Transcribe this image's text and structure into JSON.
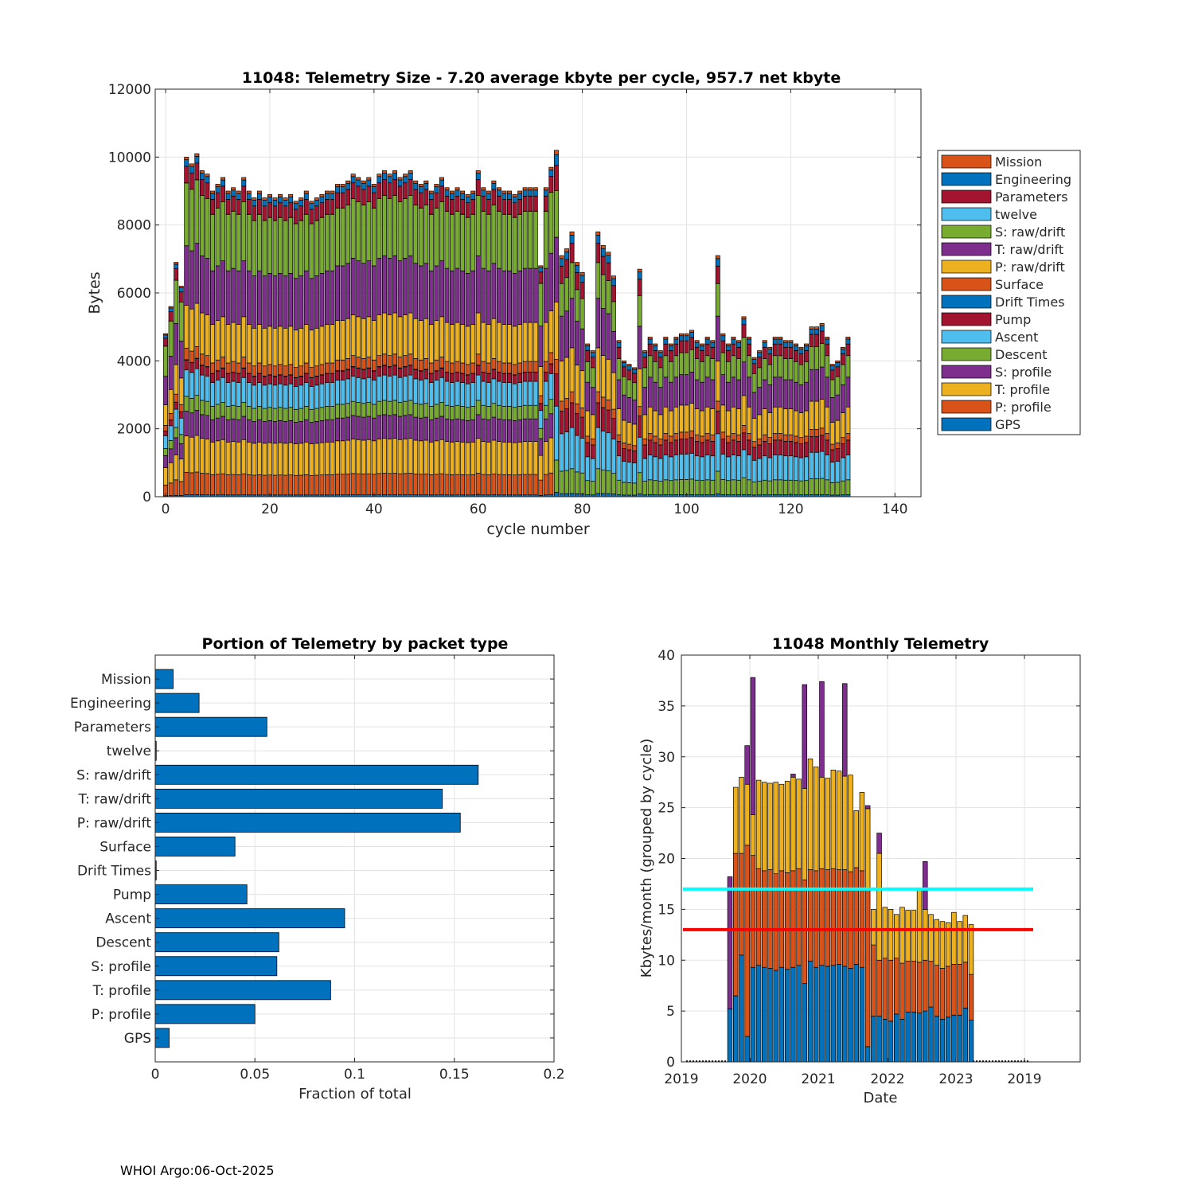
{
  "footer": "WHOI Argo:06-Oct-2025",
  "chart_data": [
    {
      "type": "bar",
      "stacked": true,
      "title": "11048: Telemetry Size - 7.20 average kbyte per cycle,  957.7 net kbyte",
      "xlabel": "cycle number",
      "ylabel": "Bytes",
      "xlim": [
        -2,
        145
      ],
      "ylim": [
        0,
        12000
      ],
      "xticks": [
        "0",
        "20",
        "40",
        "60",
        "80",
        "100",
        "120",
        "140"
      ],
      "yticks": [
        "0",
        "2000",
        "4000",
        "6000",
        "8000",
        "10000",
        "12000"
      ],
      "legend": [
        "Mission",
        "Engineering",
        "Parameters",
        "twelve",
        "S: raw/drift",
        "T: raw/drift",
        "P: raw/drift",
        "Surface",
        "Drift Times",
        "Pump",
        "Ascent",
        "Descent",
        "S: profile",
        "T: profile",
        "P: profile",
        "GPS"
      ],
      "legend_position": "outside-right",
      "legend_colors": [
        "#D95319",
        "#0072BD",
        "#A2142F",
        "#4DBEEE",
        "#77AC30",
        "#7E2F8E",
        "#EDB120",
        "#D95319",
        "#0072BD",
        "#A2142F",
        "#4DBEEE",
        "#77AC30",
        "#7E2F8E",
        "#EDB120",
        "#D95319",
        "#0072BD"
      ],
      "series_bottom_to_top": [
        "GPS",
        "P: profile",
        "T: profile",
        "S: profile",
        "Descent",
        "Ascent",
        "Pump",
        "Drift Times",
        "Surface",
        "P: raw/drift",
        "T: raw/drift",
        "S: raw/drift",
        "twelve",
        "Parameters",
        "Engineering",
        "Mission"
      ],
      "typical_cycle_early": {
        "GPS": 60,
        "P: profile": 680,
        "T: profile": 1100,
        "S: profile": 750,
        "Descent": 450,
        "Ascent": 800,
        "Pump": 300,
        "Drift Times": 10,
        "Surface": 350,
        "P: raw/drift": 1300,
        "T: raw/drift": 1800,
        "S: raw/drift": 1900,
        "twelve": 5,
        "Parameters": 500,
        "Engineering": 200,
        "Mission": 80
      },
      "typical_cycle_late": {
        "GPS": 60,
        "Descent": 450,
        "Ascent": 750,
        "Pump": 450,
        "Surface": 200,
        "P: raw/drift": 800,
        "T: raw/drift": 900,
        "S: raw/drift": 650,
        "Parameters": 350,
        "Engineering": 150,
        "Mission": 60
      },
      "totals": [
        {
          "x": 0,
          "y": 4800
        },
        {
          "x": 1,
          "y": 5600
        },
        {
          "x": 2,
          "y": 6900
        },
        {
          "x": 3,
          "y": 6200
        },
        {
          "x": 4,
          "y": 10000
        },
        {
          "x": 5,
          "y": 9800
        },
        {
          "x": 6,
          "y": 10100
        },
        {
          "x": 7,
          "y": 9600
        },
        {
          "x": 8,
          "y": 9500
        },
        {
          "x": 9,
          "y": 9000
        },
        {
          "x": 10,
          "y": 9200
        },
        {
          "x": 11,
          "y": 9400
        },
        {
          "x": 12,
          "y": 9000
        },
        {
          "x": 13,
          "y": 9100
        },
        {
          "x": 14,
          "y": 9000
        },
        {
          "x": 15,
          "y": 9400
        },
        {
          "x": 16,
          "y": 9000
        },
        {
          "x": 17,
          "y": 8800
        },
        {
          "x": 18,
          "y": 9000
        },
        {
          "x": 19,
          "y": 8800
        },
        {
          "x": 20,
          "y": 8900
        },
        {
          "x": 21,
          "y": 8800
        },
        {
          "x": 22,
          "y": 8900
        },
        {
          "x": 23,
          "y": 8800
        },
        {
          "x": 24,
          "y": 8900
        },
        {
          "x": 25,
          "y": 8700
        },
        {
          "x": 26,
          "y": 8800
        },
        {
          "x": 27,
          "y": 9000
        },
        {
          "x": 28,
          "y": 8700
        },
        {
          "x": 29,
          "y": 8800
        },
        {
          "x": 30,
          "y": 8900
        },
        {
          "x": 31,
          "y": 9000
        },
        {
          "x": 32,
          "y": 9000
        },
        {
          "x": 33,
          "y": 9200
        },
        {
          "x": 34,
          "y": 9200
        },
        {
          "x": 35,
          "y": 9300
        },
        {
          "x": 36,
          "y": 9500
        },
        {
          "x": 37,
          "y": 9400
        },
        {
          "x": 38,
          "y": 9300
        },
        {
          "x": 39,
          "y": 9400
        },
        {
          "x": 40,
          "y": 9200
        },
        {
          "x": 41,
          "y": 9500
        },
        {
          "x": 42,
          "y": 9600
        },
        {
          "x": 43,
          "y": 9500
        },
        {
          "x": 44,
          "y": 9600
        },
        {
          "x": 45,
          "y": 9400
        },
        {
          "x": 46,
          "y": 9500
        },
        {
          "x": 47,
          "y": 9600
        },
        {
          "x": 48,
          "y": 9300
        },
        {
          "x": 49,
          "y": 9200
        },
        {
          "x": 50,
          "y": 9300
        },
        {
          "x": 51,
          "y": 9000
        },
        {
          "x": 52,
          "y": 9200
        },
        {
          "x": 53,
          "y": 9400
        },
        {
          "x": 54,
          "y": 9100
        },
        {
          "x": 55,
          "y": 9000
        },
        {
          "x": 56,
          "y": 9100
        },
        {
          "x": 57,
          "y": 9000
        },
        {
          "x": 58,
          "y": 8900
        },
        {
          "x": 59,
          "y": 9000
        },
        {
          "x": 60,
          "y": 9600
        },
        {
          "x": 61,
          "y": 9100
        },
        {
          "x": 62,
          "y": 9000
        },
        {
          "x": 63,
          "y": 9300
        },
        {
          "x": 64,
          "y": 9100
        },
        {
          "x": 65,
          "y": 9000
        },
        {
          "x": 66,
          "y": 9000
        },
        {
          "x": 67,
          "y": 8900
        },
        {
          "x": 68,
          "y": 9000
        },
        {
          "x": 69,
          "y": 9100
        },
        {
          "x": 70,
          "y": 9100
        },
        {
          "x": 71,
          "y": 9100
        },
        {
          "x": 72,
          "y": 6800
        },
        {
          "x": 73,
          "y": 9100
        },
        {
          "x": 74,
          "y": 9700
        },
        {
          "x": 75,
          "y": 10200
        },
        {
          "x": 76,
          "y": 7100
        },
        {
          "x": 77,
          "y": 7300
        },
        {
          "x": 78,
          "y": 7800
        },
        {
          "x": 79,
          "y": 6900
        },
        {
          "x": 80,
          "y": 6600
        },
        {
          "x": 81,
          "y": 4500
        },
        {
          "x": 82,
          "y": 4300
        },
        {
          "x": 83,
          "y": 7800
        },
        {
          "x": 84,
          "y": 7400
        },
        {
          "x": 85,
          "y": 7200
        },
        {
          "x": 86,
          "y": 6500
        },
        {
          "x": 87,
          "y": 4600
        },
        {
          "x": 88,
          "y": 4000
        },
        {
          "x": 89,
          "y": 3900
        },
        {
          "x": 90,
          "y": 3800
        },
        {
          "x": 91,
          "y": 6700
        },
        {
          "x": 92,
          "y": 4300
        },
        {
          "x": 93,
          "y": 4700
        },
        {
          "x": 94,
          "y": 4500
        },
        {
          "x": 95,
          "y": 4300
        },
        {
          "x": 96,
          "y": 4700
        },
        {
          "x": 97,
          "y": 4500
        },
        {
          "x": 98,
          "y": 4700
        },
        {
          "x": 99,
          "y": 4800
        },
        {
          "x": 100,
          "y": 4800
        },
        {
          "x": 101,
          "y": 4900
        },
        {
          "x": 102,
          "y": 4600
        },
        {
          "x": 103,
          "y": 4500
        },
        {
          "x": 104,
          "y": 4700
        },
        {
          "x": 105,
          "y": 4600
        },
        {
          "x": 106,
          "y": 7100
        },
        {
          "x": 107,
          "y": 4800
        },
        {
          "x": 108,
          "y": 4500
        },
        {
          "x": 109,
          "y": 4700
        },
        {
          "x": 110,
          "y": 4600
        },
        {
          "x": 111,
          "y": 5300
        },
        {
          "x": 112,
          "y": 4700
        },
        {
          "x": 113,
          "y": 4100
        },
        {
          "x": 114,
          "y": 4300
        },
        {
          "x": 115,
          "y": 4600
        },
        {
          "x": 116,
          "y": 4400
        },
        {
          "x": 117,
          "y": 4700
        },
        {
          "x": 118,
          "y": 4700
        },
        {
          "x": 119,
          "y": 4600
        },
        {
          "x": 120,
          "y": 4600
        },
        {
          "x": 121,
          "y": 4500
        },
        {
          "x": 122,
          "y": 4400
        },
        {
          "x": 123,
          "y": 4500
        },
        {
          "x": 124,
          "y": 5000
        },
        {
          "x": 125,
          "y": 5000
        },
        {
          "x": 126,
          "y": 5100
        },
        {
          "x": 127,
          "y": 4700
        },
        {
          "x": 128,
          "y": 3900
        },
        {
          "x": 129,
          "y": 4000
        },
        {
          "x": 130,
          "y": 4400
        },
        {
          "x": 131,
          "y": 4700
        }
      ]
    },
    {
      "type": "barh",
      "title": "Portion of Telemetry by packet type",
      "xlabel": "Fraction of total",
      "xlim": [
        0,
        0.2
      ],
      "xticks": [
        "0",
        "0.05",
        "0.1",
        "0.15",
        "0.2"
      ],
      "categories": [
        "Mission",
        "Engineering",
        "Parameters",
        "twelve",
        "S: raw/drift",
        "T: raw/drift",
        "P: raw/drift",
        "Surface",
        "Drift Times",
        "Pump",
        "Ascent",
        "Descent",
        "S: profile",
        "T: profile",
        "P: profile",
        "GPS"
      ],
      "values": [
        0.009,
        0.022,
        0.056,
        0.0005,
        0.162,
        0.144,
        0.153,
        0.04,
        0.0005,
        0.046,
        0.095,
        0.062,
        0.061,
        0.088,
        0.05,
        0.007
      ],
      "color": "#0072BD"
    },
    {
      "type": "bar",
      "stacked": true,
      "title": "11048 Monthly Telemetry",
      "xlabel": "Date",
      "ylabel": "Kbytes/month (grouped by cycle)",
      "ylim": [
        0,
        40
      ],
      "yticks": [
        "0",
        "5",
        "10",
        "15",
        "20",
        "25",
        "30",
        "35",
        "40"
      ],
      "xticks": [
        "2019",
        "2020",
        "2021",
        "2022",
        "2023",
        "2019"
      ],
      "series_colors": [
        "#0072BD",
        "#D95319",
        "#EDB120",
        "#7E2F8E"
      ],
      "hlines": [
        {
          "y": 17.0,
          "color": "#00FFFF"
        },
        {
          "y": 13.0,
          "color": "#FF0000"
        }
      ],
      "months": [
        {
          "m": "2019-08",
          "s": [
            5.2,
            0,
            0,
            13.0
          ]
        },
        {
          "m": "2019-09",
          "s": [
            6.5,
            14.0,
            6.5,
            0
          ]
        },
        {
          "m": "2019-10",
          "s": [
            10.5,
            10.0,
            7.5,
            0
          ]
        },
        {
          "m": "2019-11",
          "s": [
            2.5,
            18.8,
            6.0,
            3.8
          ]
        },
        {
          "m": "2019-12",
          "s": [
            9.3,
            11.0,
            4.0,
            13.5
          ]
        },
        {
          "m": "2020-01",
          "s": [
            9.5,
            9.5,
            8.7,
            0
          ]
        },
        {
          "m": "2020-02",
          "s": [
            9.3,
            9.5,
            8.7,
            0
          ]
        },
        {
          "m": "2020-03",
          "s": [
            9.2,
            9.7,
            8.5,
            0
          ]
        },
        {
          "m": "2020-04",
          "s": [
            9.0,
            9.5,
            9.0,
            0
          ]
        },
        {
          "m": "2020-05",
          "s": [
            9.3,
            9.5,
            8.5,
            0
          ]
        },
        {
          "m": "2020-06",
          "s": [
            9.1,
            9.5,
            9.0,
            0
          ]
        },
        {
          "m": "2020-07",
          "s": [
            9.3,
            9.5,
            9.2,
            0.3
          ]
        },
        {
          "m": "2020-08",
          "s": [
            9.5,
            9.5,
            8.8,
            0
          ]
        },
        {
          "m": "2020-09",
          "s": [
            7.7,
            10.2,
            9.0,
            10.2
          ]
        },
        {
          "m": "2020-10",
          "s": [
            9.9,
            9.0,
            10.9,
            0
          ]
        },
        {
          "m": "2020-11",
          "s": [
            9.3,
            9.5,
            10.2,
            0
          ]
        },
        {
          "m": "2020-12",
          "s": [
            9.5,
            9.5,
            9.0,
            9.4
          ]
        },
        {
          "m": "2021-01",
          "s": [
            9.4,
            9.5,
            9.0,
            0
          ]
        },
        {
          "m": "2021-02",
          "s": [
            9.5,
            9.5,
            9.7,
            0
          ]
        },
        {
          "m": "2021-03",
          "s": [
            9.6,
            9.3,
            9.7,
            0
          ]
        },
        {
          "m": "2021-04",
          "s": [
            9.4,
            9.5,
            9.2,
            9.1
          ]
        },
        {
          "m": "2021-05",
          "s": [
            9.2,
            9.5,
            9.5,
            0
          ]
        },
        {
          "m": "2021-06",
          "s": [
            9.6,
            9.5,
            5.6,
            0
          ]
        },
        {
          "m": "2021-07",
          "s": [
            9.3,
            9.5,
            7.7,
            0
          ]
        },
        {
          "m": "2021-08",
          "s": [
            1.5,
            15.4,
            8.0,
            0.3
          ]
        },
        {
          "m": "2021-09",
          "s": [
            4.5,
            7.0,
            3.5,
            0
          ]
        },
        {
          "m": "2021-10",
          "s": [
            4.5,
            5.5,
            10.5,
            2.0
          ]
        },
        {
          "m": "2021-11",
          "s": [
            4.2,
            6.0,
            5.0,
            0
          ]
        },
        {
          "m": "2021-12",
          "s": [
            4.0,
            6.0,
            5.0,
            0
          ]
        },
        {
          "m": "2022-01",
          "s": [
            4.7,
            5.5,
            4.3,
            0
          ]
        },
        {
          "m": "2022-02",
          "s": [
            4.2,
            5.5,
            5.5,
            0
          ]
        },
        {
          "m": "2022-03",
          "s": [
            4.9,
            5.0,
            5.0,
            0
          ]
        },
        {
          "m": "2022-04",
          "s": [
            4.9,
            5.0,
            5.0,
            0
          ]
        },
        {
          "m": "2022-05",
          "s": [
            4.8,
            5.0,
            7.2,
            0
          ]
        },
        {
          "m": "2022-06",
          "s": [
            5.0,
            5.0,
            5.0,
            4.7
          ]
        },
        {
          "m": "2022-07",
          "s": [
            5.4,
            4.5,
            4.6,
            0
          ]
        },
        {
          "m": "2022-08",
          "s": [
            4.5,
            5.0,
            4.5,
            0
          ]
        },
        {
          "m": "2022-09",
          "s": [
            4.2,
            5.0,
            4.6,
            0
          ]
        },
        {
          "m": "2022-10",
          "s": [
            4.4,
            5.0,
            4.3,
            0
          ]
        },
        {
          "m": "2022-11",
          "s": [
            4.6,
            5.0,
            5.1,
            0
          ]
        },
        {
          "m": "2022-12",
          "s": [
            4.6,
            5.0,
            4.2,
            0
          ]
        },
        {
          "m": "2023-01",
          "s": [
            5.3,
            4.5,
            4.6,
            0
          ]
        },
        {
          "m": "2023-02",
          "s": [
            4.1,
            4.5,
            4.9,
            0
          ]
        }
      ]
    }
  ]
}
